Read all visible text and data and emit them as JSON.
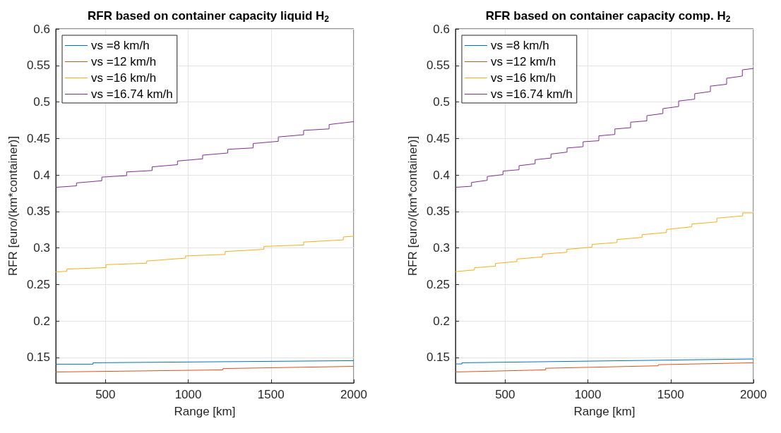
{
  "chart_data": [
    {
      "type": "line",
      "title": "RFR based on container capacity liquid H$_{2}$",
      "xlabel": "Range [km]",
      "ylabel": "RFR [euro/(km*container)]",
      "xlim": [
        200,
        2000
      ],
      "xticks": [
        500,
        1000,
        1500,
        2000
      ],
      "ylim": [
        0.115,
        0.6
      ],
      "yticks": [
        0.15,
        0.2,
        0.25,
        0.3,
        0.35,
        0.4,
        0.45,
        0.5,
        0.55,
        0.6
      ],
      "grid": true,
      "legend": "top left",
      "marker": "none",
      "line_style": "solid",
      "series": [
        {
          "name": "vs =8 km/h",
          "color": "#0072bd",
          "x": [
            200,
            425,
            425,
            2000
          ],
          "values": [
            0.1407,
            0.1407,
            0.1426,
            0.1455
          ]
        },
        {
          "name": "vs =12 km/h",
          "color": "#d95319",
          "x": [
            200,
            1210,
            1210,
            2000
          ],
          "values": [
            0.13,
            0.1329,
            0.1347,
            0.1377
          ]
        },
        {
          "name": "vs =16 km/h",
          "color": "#edb120",
          "x": [
            200,
            267,
            267,
            503,
            503,
            749,
            749,
            984,
            984,
            1223,
            1223,
            1457,
            1457,
            1697,
            1697,
            1937,
            1937,
            2000
          ],
          "values": [
            0.267,
            0.268,
            0.271,
            0.273,
            0.277,
            0.279,
            0.282,
            0.286,
            0.289,
            0.291,
            0.295,
            0.298,
            0.302,
            0.304,
            0.308,
            0.311,
            0.315,
            0.316
          ]
        },
        {
          "name": "vs =16.74 km/h",
          "color": "#7e2f8e",
          "x": [
            200,
            325,
            325,
            478,
            478,
            628,
            628,
            782,
            782,
            935,
            935,
            1087,
            1087,
            1239,
            1239,
            1392,
            1392,
            1544,
            1544,
            1697,
            1697,
            1851,
            1851,
            2000
          ],
          "values": [
            0.383,
            0.385,
            0.389,
            0.392,
            0.397,
            0.399,
            0.404,
            0.406,
            0.411,
            0.414,
            0.419,
            0.422,
            0.427,
            0.43,
            0.435,
            0.437,
            0.443,
            0.446,
            0.452,
            0.455,
            0.461,
            0.463,
            0.469,
            0.473
          ]
        }
      ]
    },
    {
      "type": "line",
      "title": "RFR based on container capacity comp. H$_{2}$",
      "xlabel": "Range [km]",
      "ylabel": "RFR [euro/(km*container)]",
      "xlim": [
        200,
        2000
      ],
      "xticks": [
        500,
        1000,
        1500,
        2000
      ],
      "ylim": [
        0.115,
        0.6
      ],
      "yticks": [
        0.15,
        0.2,
        0.25,
        0.3,
        0.35,
        0.4,
        0.45,
        0.5,
        0.55,
        0.6
      ],
      "grid": true,
      "legend": "top left",
      "marker": "none",
      "line_style": "solid",
      "series": [
        {
          "name": "vs =8 km/h",
          "color": "#0072bd",
          "x": [
            200,
            239,
            239,
            2000
          ],
          "values": [
            0.141,
            0.141,
            0.1426,
            0.1478
          ]
        },
        {
          "name": "vs =12 km/h",
          "color": "#d95319",
          "x": [
            200,
            745,
            745,
            1425,
            1425,
            2000
          ],
          "values": [
            0.13,
            0.1329,
            0.1351,
            0.1385,
            0.14,
            0.1426
          ]
        },
        {
          "name": "vs =16 km/h",
          "color": "#edb120",
          "x": [
            200,
            315,
            315,
            441,
            441,
            571,
            571,
            725,
            725,
            873,
            873,
            1025,
            1025,
            1176,
            1176,
            1327,
            1327,
            1475,
            1475,
            1628,
            1628,
            1779,
            1779,
            1935,
            1935,
            2000
          ],
          "values": [
            0.2675,
            0.2698,
            0.2728,
            0.275,
            0.2787,
            0.2813,
            0.2847,
            0.2876,
            0.2914,
            0.294,
            0.298,
            0.301,
            0.3048,
            0.3074,
            0.3115,
            0.3144,
            0.3181,
            0.3211,
            0.3252,
            0.3289,
            0.3327,
            0.3356,
            0.3408,
            0.3438,
            0.3479,
            0.3479
          ]
        },
        {
          "name": "vs =16.74 km/h",
          "color": "#7e2f8e",
          "x": [
            200,
            297,
            297,
            392,
            392,
            487,
            487,
            584,
            584,
            681,
            681,
            777,
            777,
            874,
            874,
            971,
            971,
            1066,
            1066,
            1163,
            1163,
            1258,
            1258,
            1356,
            1356,
            1453,
            1453,
            1548,
            1548,
            1645,
            1645,
            1740,
            1740,
            1838,
            1838,
            1933,
            1933,
            2000
          ],
          "values": [
            0.383,
            0.3845,
            0.3896,
            0.3926,
            0.3978,
            0.4004,
            0.4052,
            0.4071,
            0.4126,
            0.4153,
            0.4208,
            0.4231,
            0.4286,
            0.4312,
            0.4368,
            0.4387,
            0.4454,
            0.4468,
            0.4535,
            0.4554,
            0.4629,
            0.4647,
            0.4722,
            0.474,
            0.4811,
            0.4841,
            0.4908,
            0.4937,
            0.5012,
            0.5038,
            0.5112,
            0.5142,
            0.5216,
            0.5242,
            0.5324,
            0.5354,
            0.5439,
            0.5458
          ]
        }
      ]
    }
  ]
}
